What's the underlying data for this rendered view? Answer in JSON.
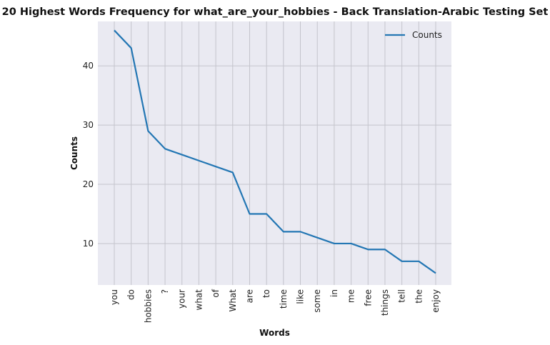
{
  "chart_data": {
    "type": "line",
    "title": "20 Highest Words Frequency for what_are_your_hobbies - Back Translation-Arabic Testing Set",
    "xlabel": "Words",
    "ylabel": "Counts",
    "categories": [
      "you",
      "do",
      "hobbies",
      "?",
      "your",
      "what",
      "of",
      "What",
      "are",
      "to",
      "time",
      "like",
      "some",
      "in",
      "me",
      "free",
      "things",
      "tell",
      "the",
      "enjoy"
    ],
    "series": [
      {
        "name": "Counts",
        "values": [
          46,
          43,
          29,
          26,
          25,
          24,
          23,
          22,
          15,
          15,
          12,
          12,
          11,
          10,
          10,
          9,
          9,
          7,
          7,
          5
        ]
      }
    ],
    "yticks": [
      10,
      20,
      30,
      40
    ],
    "ylim": [
      3,
      47.5
    ],
    "legend": "top-right",
    "grid": true,
    "colors": {
      "line": "#2477b4",
      "plot_bg": "#eaeaf2",
      "grid": "#c4c4cc"
    }
  }
}
